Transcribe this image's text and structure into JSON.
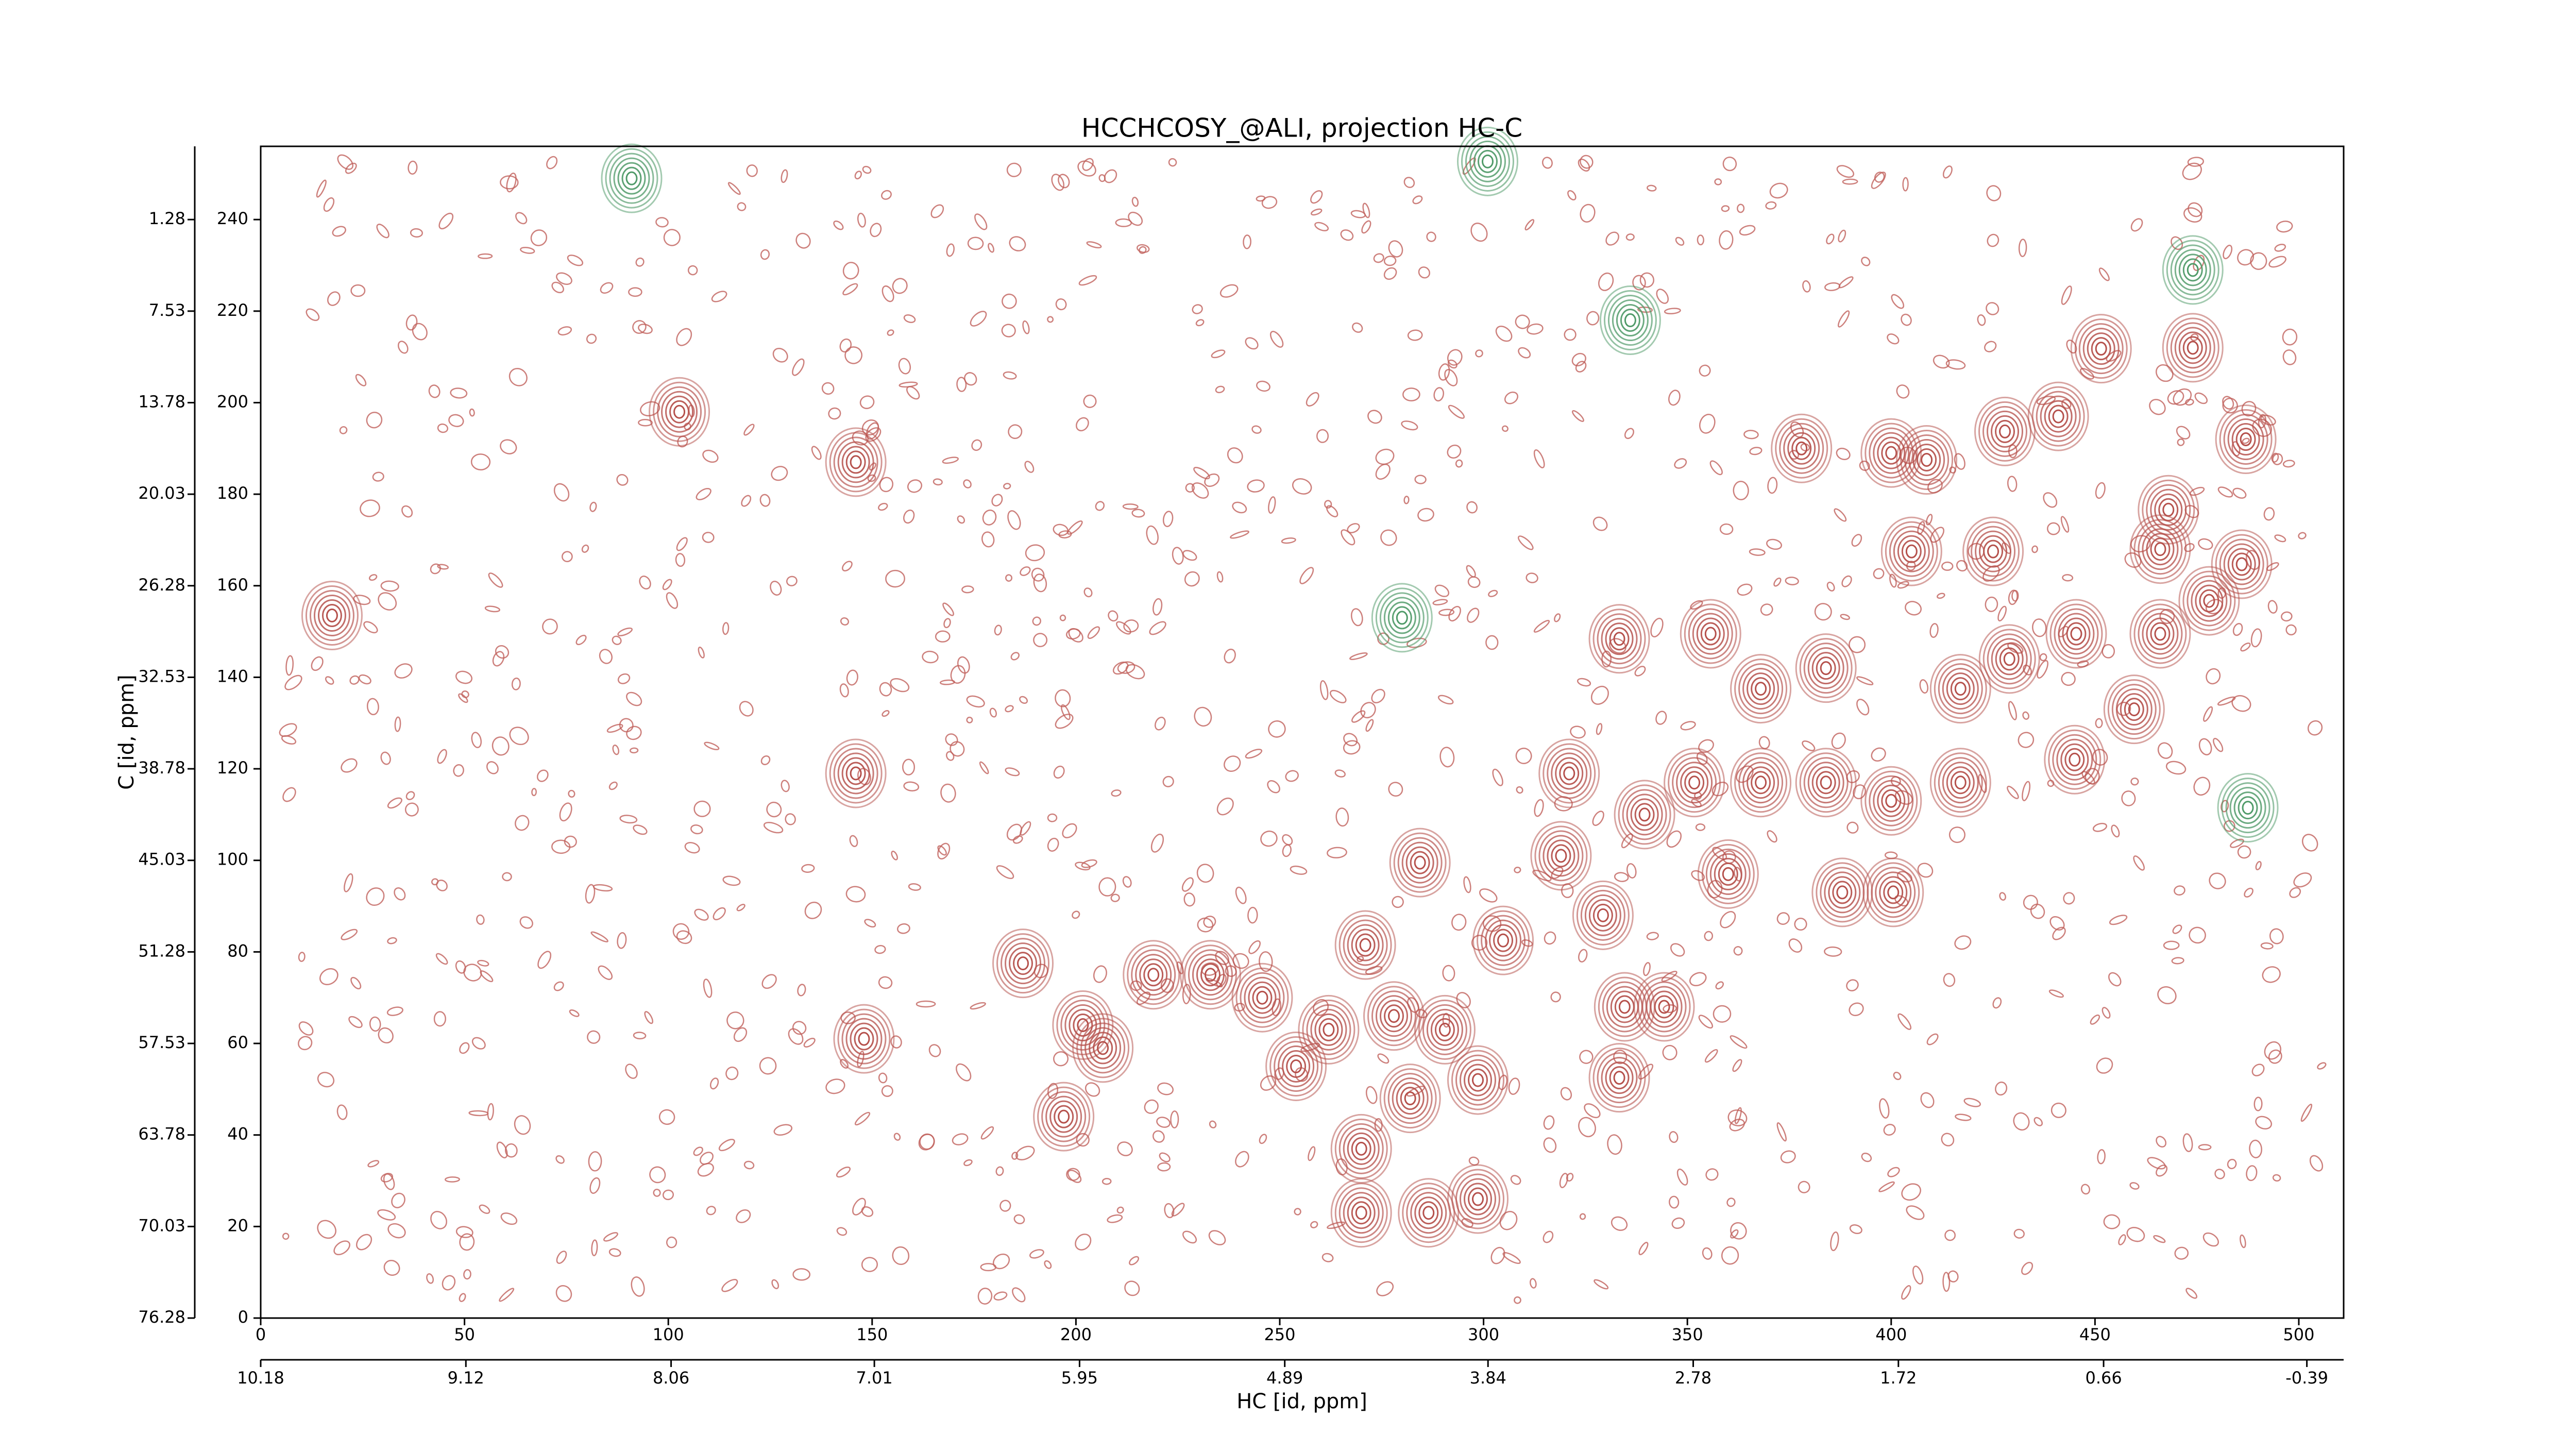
{
  "chart_data": {
    "type": "contour",
    "title": "HCCHCOSY_@ALI, projection HC-C",
    "xlabel": "HC [id, ppm]",
    "ylabel": "C [id, ppm]",
    "xlim": [
      0,
      511
    ],
    "ylim": [
      0,
      256
    ],
    "xticks": [
      0,
      50,
      100,
      150,
      200,
      250,
      300,
      350,
      400,
      450,
      500
    ],
    "yticks": [
      0,
      20,
      40,
      60,
      80,
      100,
      120,
      140,
      160,
      180,
      200,
      220,
      240
    ],
    "x2lim": [
      10.18,
      -0.58
    ],
    "x2ticks": [
      10.18,
      9.12,
      8.06,
      7.01,
      5.95,
      4.89,
      3.84,
      2.78,
      1.72,
      0.66,
      -0.39
    ],
    "y2lim": [
      76.28,
      -3.72
    ],
    "y2ticks": [
      1.28,
      7.53,
      13.78,
      20.03,
      26.28,
      32.53,
      38.78,
      45.03,
      51.28,
      57.53,
      63.78,
      70.03,
      76.28
    ],
    "series": [
      {
        "color": "#b5504b",
        "x": [
          17.5,
          102.7,
          146,
          146,
          148,
          187,
          201.7,
          206.6,
          197,
          219,
          233,
          245.7,
          254,
          262,
          271,
          278,
          290.5,
          282,
          298.6,
          270,
          286.5,
          298.6,
          270,
          284.4,
          304.8,
          319,
          329.3,
          334.6,
          344.3,
          333.3,
          321,
          339.5,
          333.3,
          355.7,
          378,
          400,
          408.7,
          427.9,
          441,
          451.5,
          474,
          487,
          468,
          466,
          486,
          478,
          459.6,
          384,
          368,
          384,
          400,
          417,
          351.7,
          388,
          400.5,
          360,
          425,
          405,
          445.4,
          429,
          368,
          417,
          445,
          466
        ],
        "y": [
          153.5,
          198,
          187,
          119,
          61,
          77.5,
          64,
          59,
          44,
          75,
          75,
          70,
          55,
          63,
          81.5,
          66,
          63,
          48,
          52,
          23,
          23,
          26,
          37,
          99.5,
          82.5,
          101,
          88,
          68,
          68,
          52.5,
          119,
          110,
          148.4,
          149.5,
          190,
          189,
          187.5,
          193.7,
          197,
          211.8,
          212,
          192,
          176.6,
          168,
          164.7,
          156.7,
          133,
          142,
          117,
          117,
          113,
          117,
          117,
          93,
          93,
          97,
          167.5,
          167.5,
          149.5,
          144,
          137.5,
          137.5,
          122,
          149.5
        ]
      },
      {
        "color": "#4f9a68",
        "x": [
          487.5,
          474,
          336,
          301,
          91,
          280
        ],
        "y": [
          111.5,
          229,
          218,
          252.7,
          249,
          153
        ]
      }
    ]
  }
}
